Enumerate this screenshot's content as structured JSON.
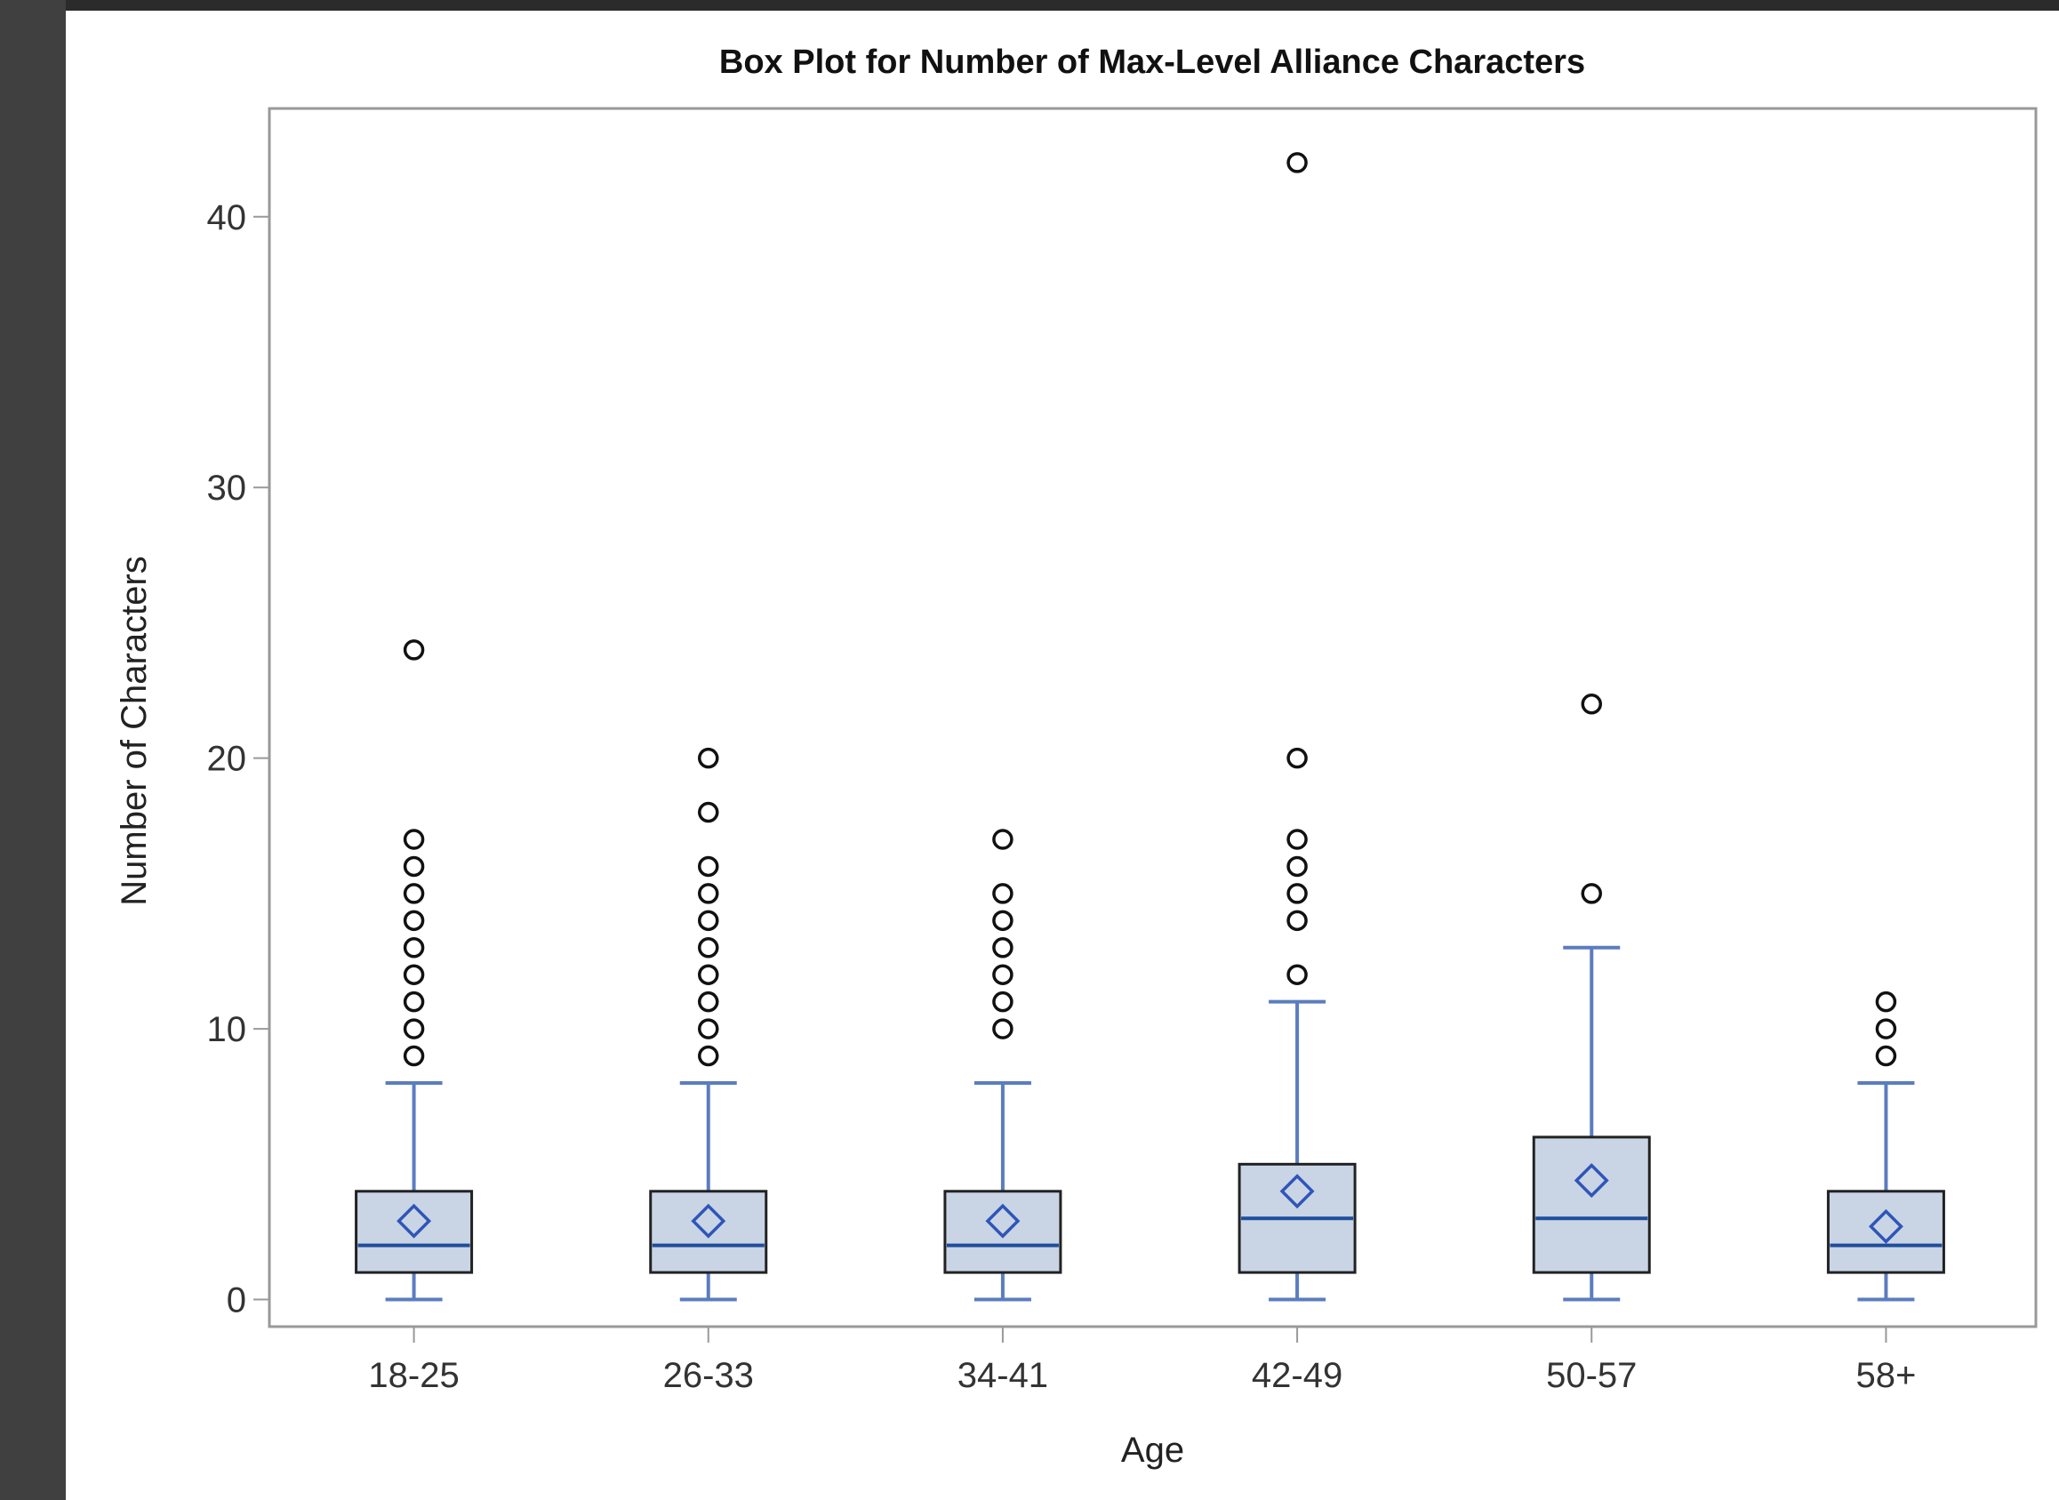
{
  "chart_data": {
    "type": "box",
    "title": "Box Plot for Number of Max-Level Alliance Characters",
    "xlabel": "Age",
    "ylabel": "Number of Characters",
    "ylim": [
      -1,
      44
    ],
    "yticks": [
      0,
      10,
      20,
      30,
      40
    ],
    "grid": false,
    "legend": "none",
    "categories": [
      "18-25",
      "26-33",
      "34-41",
      "42-49",
      "50-57",
      "58+"
    ],
    "boxes": [
      {
        "category": "18-25",
        "min": 0,
        "q1": 1,
        "median": 2,
        "q3": 4,
        "max": 8,
        "mean": 2.9,
        "outliers": [
          9,
          10,
          11,
          12,
          13,
          14,
          15,
          16,
          17,
          24
        ]
      },
      {
        "category": "26-33",
        "min": 0,
        "q1": 1,
        "median": 2,
        "q3": 4,
        "max": 8,
        "mean": 2.9,
        "outliers": [
          9,
          10,
          11,
          12,
          13,
          14,
          15,
          16,
          18,
          20
        ]
      },
      {
        "category": "34-41",
        "min": 0,
        "q1": 1,
        "median": 2,
        "q3": 4,
        "max": 8,
        "mean": 2.9,
        "outliers": [
          10,
          11,
          12,
          13,
          14,
          15,
          17
        ]
      },
      {
        "category": "42-49",
        "min": 0,
        "q1": 1,
        "median": 3,
        "q3": 5,
        "max": 11,
        "mean": 4.0,
        "outliers": [
          12,
          14,
          15,
          16,
          17,
          20,
          42
        ]
      },
      {
        "category": "50-57",
        "min": 0,
        "q1": 1,
        "median": 3,
        "q3": 6,
        "max": 13,
        "mean": 4.4,
        "outliers": [
          15,
          22
        ]
      },
      {
        "category": "58+",
        "min": 0,
        "q1": 1,
        "median": 2,
        "q3": 4,
        "max": 8,
        "mean": 2.7,
        "outliers": [
          9,
          10,
          11
        ]
      }
    ],
    "colors": {
      "box_fill": "#c9d5e5",
      "box_stroke": "#222222",
      "whisker": "#5b7dbf",
      "median": "#1f4e9c",
      "mean_marker": "#2f55b8",
      "outlier": "#111111",
      "axis": "#999999",
      "frame_dark": "#404040"
    }
  }
}
